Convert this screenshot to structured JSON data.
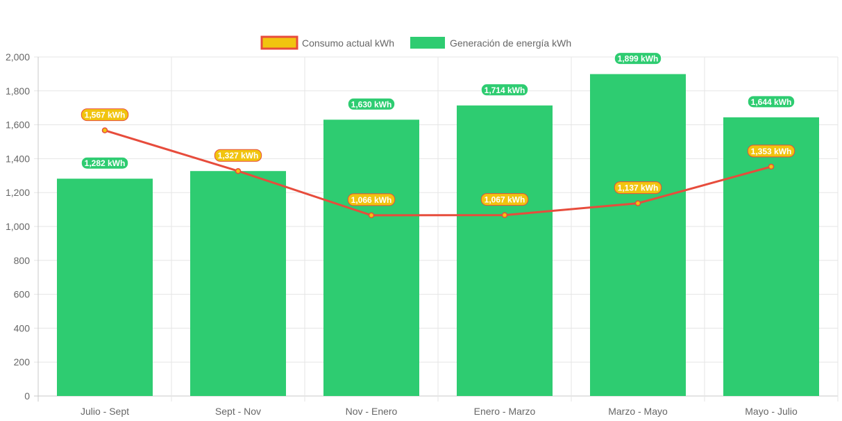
{
  "chart_data": {
    "type": "bar",
    "title": "",
    "xlabel": "",
    "ylabel": "",
    "ylim": [
      0,
      2000
    ],
    "y_ticks": [
      0,
      200,
      400,
      600,
      800,
      1000,
      1200,
      1400,
      1600,
      1800,
      2000
    ],
    "y_tick_labels": [
      "0",
      "200",
      "400",
      "600",
      "800",
      "1,000",
      "1,200",
      "1,400",
      "1,600",
      "1,800",
      "2,000"
    ],
    "categories": [
      "Julio - Sept",
      "Sept - Nov",
      "Nov - Enero",
      "Enero - Marzo",
      "Marzo - Mayo",
      "Mayo - Julio"
    ],
    "grid": true,
    "legend_position": "top-center",
    "series": [
      {
        "name": "Consumo actual kWh",
        "kind": "line",
        "values": [
          1567,
          1327,
          1066,
          1067,
          1137,
          1353
        ],
        "labels": [
          "1,567 kWh",
          "1,327 kWh",
          "1,066 kWh",
          "1,067 kWh",
          "1,137 kWh",
          "1,353 kWh"
        ],
        "color": "#e74c3c",
        "fill": "#f1c40f"
      },
      {
        "name": "Generación de energía kWh",
        "kind": "bar",
        "values": [
          1282,
          1327,
          1630,
          1714,
          1899,
          1644
        ],
        "labels": [
          "1,282 kWh",
          "1,327 kWh",
          "1,630 kWh",
          "1,714 kWh",
          "1,899 kWh",
          "1,644 kWh"
        ],
        "color": "#2ecc71"
      }
    ]
  }
}
